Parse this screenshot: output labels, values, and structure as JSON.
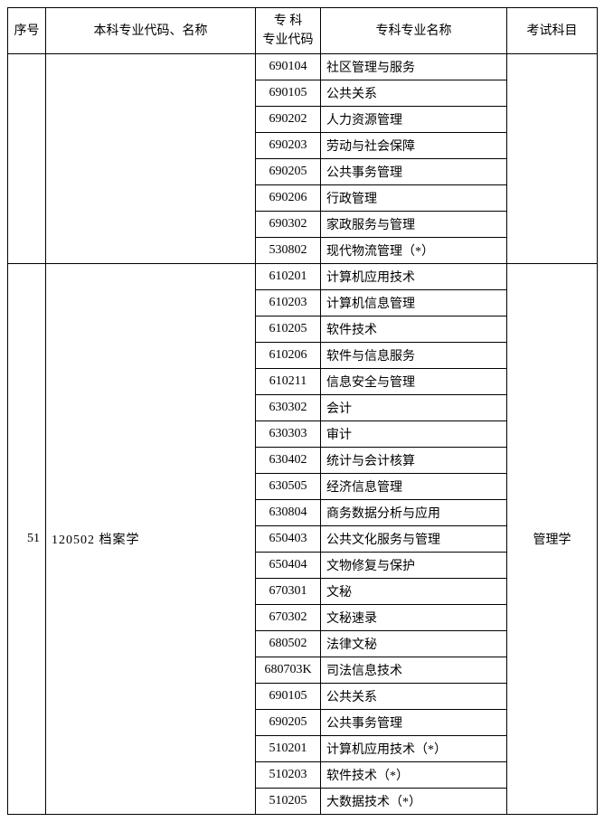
{
  "headers": {
    "seq": "序号",
    "ugcode": "本科专业代码、名称",
    "spcode_line1": "专 科",
    "spcode_line2": "专业代码",
    "spname": "专科专业名称",
    "exam": "考试科目"
  },
  "block1": {
    "rows": [
      {
        "code": "690104",
        "name": "社区管理与服务"
      },
      {
        "code": "690105",
        "name": "公共关系"
      },
      {
        "code": "690202",
        "name": "人力资源管理"
      },
      {
        "code": "690203",
        "name": "劳动与社会保障"
      },
      {
        "code": "690205",
        "name": "公共事务管理"
      },
      {
        "code": "690206",
        "name": "行政管理"
      },
      {
        "code": "690302",
        "name": "家政服务与管理"
      },
      {
        "code": "530802",
        "name": "现代物流管理（*）"
      }
    ]
  },
  "block2": {
    "seq": "51",
    "ugcode": "120502",
    "ugname": "档案学",
    "exam": "管理学",
    "rows": [
      {
        "code": "610201",
        "name": "计算机应用技术"
      },
      {
        "code": "610203",
        "name": "计算机信息管理"
      },
      {
        "code": "610205",
        "name": "软件技术"
      },
      {
        "code": "610206",
        "name": "软件与信息服务"
      },
      {
        "code": "610211",
        "name": "信息安全与管理"
      },
      {
        "code": "630302",
        "name": "会计"
      },
      {
        "code": "630303",
        "name": "审计"
      },
      {
        "code": "630402",
        "name": "统计与会计核算"
      },
      {
        "code": "630505",
        "name": "经济信息管理"
      },
      {
        "code": "630804",
        "name": "商务数据分析与应用"
      },
      {
        "code": "650403",
        "name": "公共文化服务与管理"
      },
      {
        "code": "650404",
        "name": "文物修复与保护"
      },
      {
        "code": "670301",
        "name": "文秘"
      },
      {
        "code": "670302",
        "name": "文秘速录"
      },
      {
        "code": "680502",
        "name": "法律文秘"
      },
      {
        "code": "680703K",
        "name": "司法信息技术"
      },
      {
        "code": "690105",
        "name": "公共关系"
      },
      {
        "code": "690205",
        "name": "公共事务管理"
      },
      {
        "code": "510201",
        "name": "计算机应用技术（*）"
      },
      {
        "code": "510203",
        "name": "软件技术（*）"
      },
      {
        "code": "510205",
        "name": "大数据技术（*）"
      }
    ]
  }
}
